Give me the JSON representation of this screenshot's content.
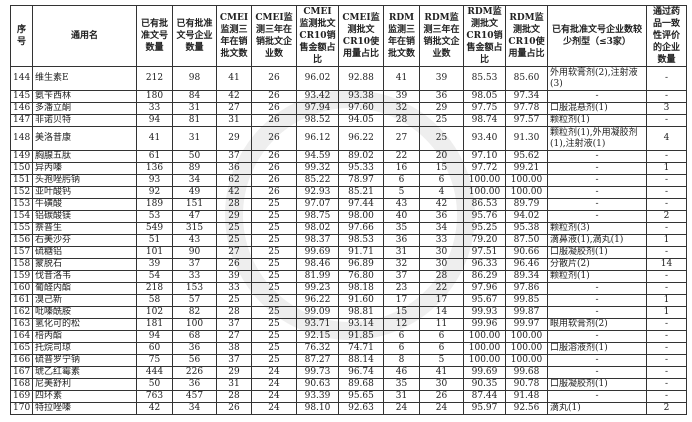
{
  "headers": [
    "序号",
    "通用名",
    "已有批准文号数量",
    "已有批准文号企业数量",
    "CMEI监测三年在销批文数",
    "CMEI监测三年在销批文企业数",
    "CMEI监测批文CR10销售金额占比",
    "CMEI监测批文CR10使用量占比",
    "RDM监测三年在销批文数",
    "RDM监测三年在销批文企业数",
    "RDM监测批文CR10销售金额占比",
    "RDM监测批文CR10使用量占比",
    "已有批准文号企业数较少剂型（≤3家）",
    "通过药品一致性评价的企业数量"
  ],
  "rows": [
    [
      "144",
      "维生素E",
      "212",
      "98",
      "41",
      "26",
      "96.02",
      "92.88",
      "41",
      "39",
      "85.53",
      "85.60",
      "外用软膏剂(2),注射液(3)",
      "-"
    ],
    [
      "145",
      "氨苄西林",
      "180",
      "84",
      "42",
      "26",
      "93.42",
      "93.38",
      "39",
      "36",
      "98.05",
      "97.34",
      "-",
      "-"
    ],
    [
      "146",
      "多潘立酮",
      "33",
      "31",
      "27",
      "26",
      "97.94",
      "97.60",
      "32",
      "29",
      "97.75",
      "97.78",
      "口服混悬剂(1)",
      "3"
    ],
    [
      "147",
      "非诺贝特",
      "94",
      "81",
      "31",
      "26",
      "98.52",
      "94.05",
      "28",
      "25",
      "98.74",
      "97.57",
      "颗粒剂(1)",
      "-"
    ],
    [
      "148",
      "美洛昔康",
      "41",
      "31",
      "29",
      "26",
      "96.12",
      "96.22",
      "27",
      "25",
      "93.40",
      "91.30",
      "颗粒剂(1),外用凝胶剂(1),注射液(1)",
      "4"
    ],
    [
      "149",
      "胸腺五肽",
      "61",
      "50",
      "37",
      "26",
      "94.59",
      "89.02",
      "22",
      "20",
      "97.10",
      "95.62",
      "-",
      "-"
    ],
    [
      "150",
      "异丙嗪",
      "136",
      "89",
      "36",
      "26",
      "99.32",
      "95.33",
      "16",
      "15",
      "97.72",
      "99.21",
      "-",
      "1"
    ],
    [
      "151",
      "头孢唑肟钠",
      "93",
      "34",
      "62",
      "26",
      "85.22",
      "78.97",
      "6",
      "6",
      "100.00",
      "100.00",
      "-",
      "-"
    ],
    [
      "152",
      "亚叶酸钙",
      "92",
      "49",
      "42",
      "26",
      "92.93",
      "85.21",
      "5",
      "4",
      "100.00",
      "100.00",
      "-",
      "-"
    ],
    [
      "153",
      "牛磺酸",
      "189",
      "151",
      "28",
      "25",
      "97.07",
      "97.44",
      "43",
      "42",
      "86.53",
      "89.79",
      "-",
      "-"
    ],
    [
      "154",
      "铝碳酸镁",
      "53",
      "47",
      "29",
      "25",
      "98.75",
      "98.00",
      "40",
      "36",
      "95.76",
      "94.02",
      "-",
      "2"
    ],
    [
      "155",
      "萘普生",
      "549",
      "315",
      "25",
      "25",
      "98.02",
      "97.66",
      "35",
      "34",
      "95.25",
      "95.38",
      "颗粒剂(3)",
      "-"
    ],
    [
      "156",
      "右美沙芬",
      "51",
      "43",
      "25",
      "25",
      "98.37",
      "98.53",
      "36",
      "33",
      "79.20",
      "87.50",
      "滴鼻液(1),滴丸(1)",
      "1"
    ],
    [
      "157",
      "硫糖铝",
      "101",
      "90",
      "27",
      "25",
      "99.69",
      "91.71",
      "31",
      "30",
      "97.51",
      "90.66",
      "口服凝胶剂(1)",
      "-"
    ],
    [
      "158",
      "蒙脱石",
      "39",
      "37",
      "26",
      "25",
      "98.46",
      "96.89",
      "32",
      "30",
      "96.33",
      "96.46",
      "分散片(2)",
      "14"
    ],
    [
      "159",
      "伐昔洛韦",
      "54",
      "33",
      "39",
      "25",
      "81.99",
      "76.80",
      "37",
      "28",
      "86.29",
      "89.34",
      "颗粒剂(1)",
      "-"
    ],
    [
      "160",
      "葡醛内酯",
      "218",
      "153",
      "33",
      "25",
      "99.23",
      "98.18",
      "23",
      "22",
      "97.96",
      "97.86",
      "-",
      "-"
    ],
    [
      "161",
      "溴己新",
      "58",
      "57",
      "25",
      "25",
      "96.22",
      "91.60",
      "17",
      "17",
      "95.67",
      "99.85",
      "-",
      "1"
    ],
    [
      "162",
      "吡嗪酰胺",
      "102",
      "82",
      "28",
      "25",
      "99.09",
      "98.81",
      "15",
      "14",
      "99.93",
      "99.87",
      "-",
      "1"
    ],
    [
      "163",
      "氢化可的松",
      "181",
      "100",
      "37",
      "25",
      "93.71",
      "93.14",
      "12",
      "11",
      "99.96",
      "99.97",
      "眼用软膏剂(2)",
      "-"
    ],
    [
      "164",
      "棓丙酯",
      "94",
      "68",
      "27",
      "25",
      "92.15",
      "91.85",
      "6",
      "6",
      "100.00",
      "100.00",
      "-",
      "-"
    ],
    [
      "165",
      "托烷司琼",
      "60",
      "36",
      "38",
      "25",
      "76.32",
      "74.71",
      "6",
      "6",
      "100.00",
      "100.00",
      "口服溶液剂(1)",
      "-"
    ],
    [
      "166",
      "硫普罗宁钠",
      "75",
      "56",
      "37",
      "25",
      "87.27",
      "88.14",
      "8",
      "5",
      "100.00",
      "100.00",
      "-",
      "-"
    ],
    [
      "167",
      "琥乙红霉素",
      "444",
      "226",
      "29",
      "24",
      "99.73",
      "96.74",
      "46",
      "41",
      "99.69",
      "99.68",
      "-",
      "-"
    ],
    [
      "168",
      "尼美舒利",
      "50",
      "36",
      "31",
      "24",
      "90.63",
      "89.68",
      "35",
      "30",
      "90.35",
      "90.78",
      "口服凝胶剂(1)",
      "-"
    ],
    [
      "169",
      "四环素",
      "763",
      "457",
      "28",
      "24",
      "93.39",
      "95.65",
      "31",
      "26",
      "87.44",
      "91.48",
      "-",
      "-"
    ],
    [
      "170",
      "特拉唑嗪",
      "42",
      "34",
      "26",
      "24",
      "98.10",
      "92.63",
      "24",
      "24",
      "95.97",
      "92.56",
      "滴丸(1)",
      "2"
    ]
  ]
}
